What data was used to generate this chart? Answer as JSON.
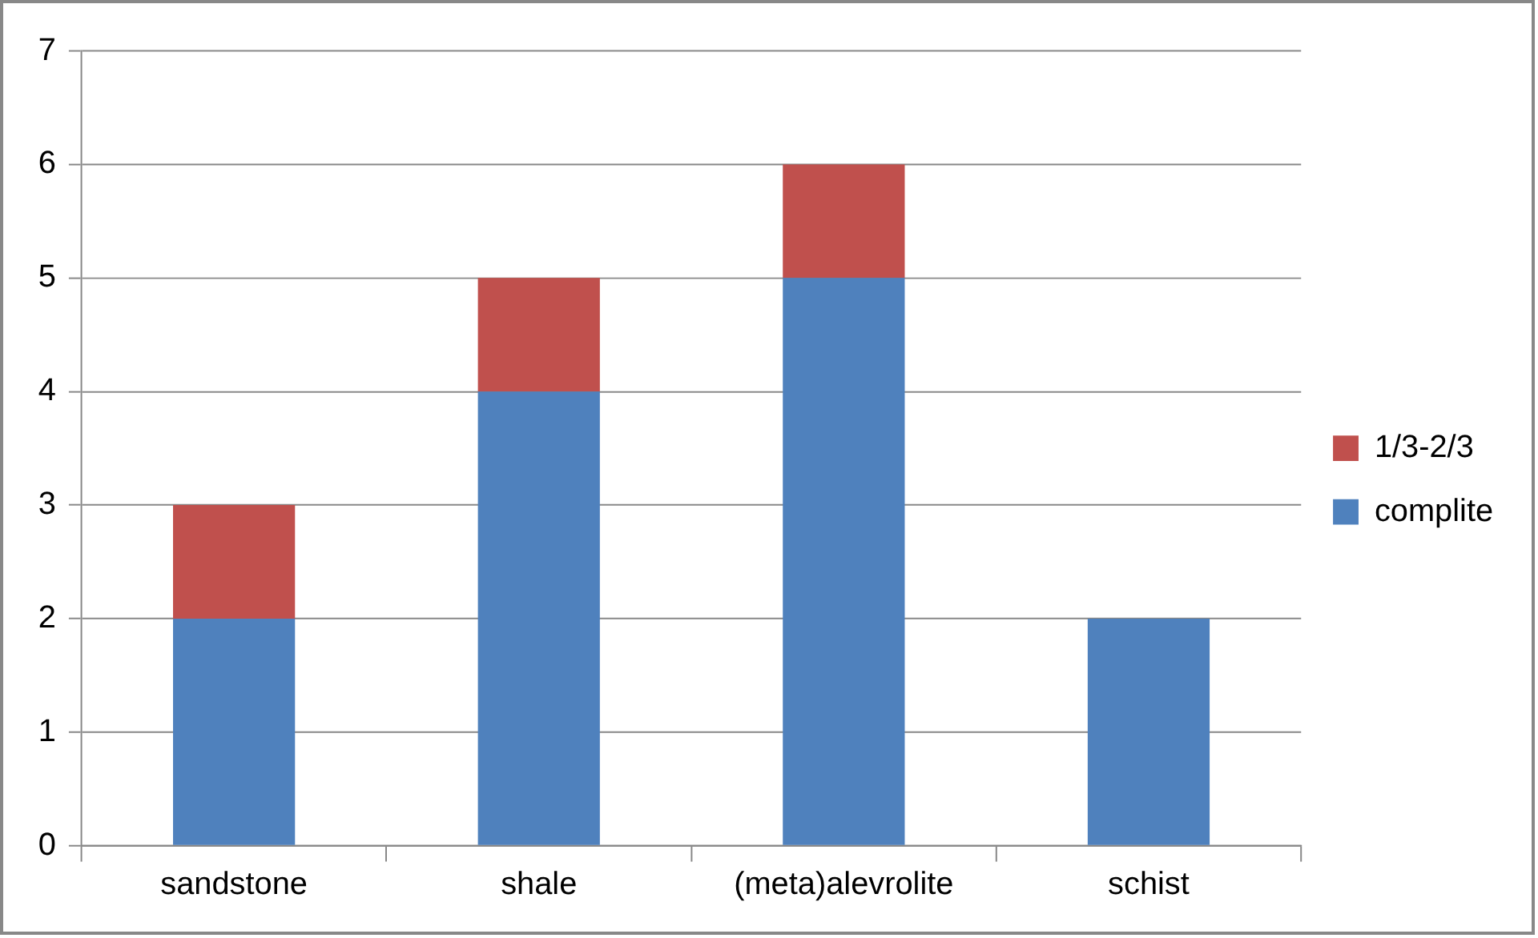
{
  "chart_data": {
    "type": "bar",
    "stacked": true,
    "categories": [
      "sandstone",
      "shale",
      "(meta)alevrolite",
      "schist"
    ],
    "series": [
      {
        "name": "complite",
        "color": "#4f81bd",
        "values": [
          2,
          4,
          5,
          2
        ]
      },
      {
        "name": "1/3-2/3",
        "color": "#c0504d",
        "values": [
          1,
          1,
          1,
          0
        ]
      }
    ],
    "ylim": [
      0,
      7
    ],
    "yticks": [
      0,
      1,
      2,
      3,
      4,
      5,
      6,
      7
    ],
    "grid": "y",
    "legend": "right"
  }
}
